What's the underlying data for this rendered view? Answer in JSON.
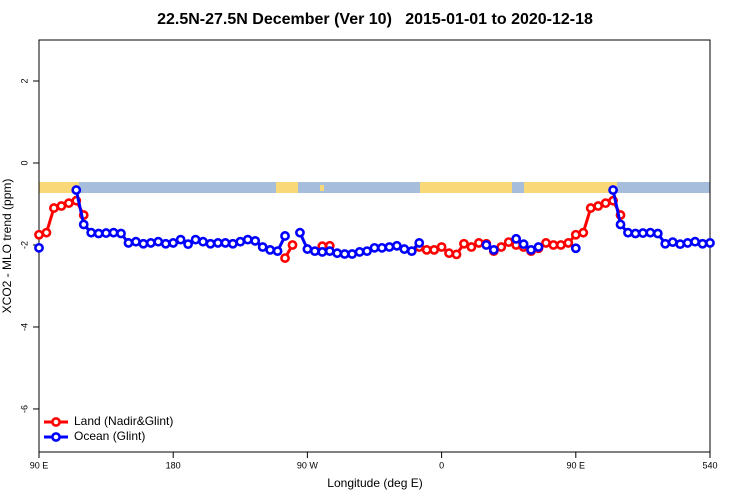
{
  "chart_data": {
    "type": "line",
    "title": "22.5N-27.5N December (Ver 10)   2015-01-01 to 2020-12-18",
    "x_label": "Longitude (deg E)",
    "y_label": "XCO2 - MLO trend (ppm)",
    "x": [
      90,
      95,
      100,
      105,
      110,
      115,
      120,
      125,
      130,
      135,
      140,
      145,
      150,
      155,
      160,
      165,
      170,
      175,
      180,
      185,
      190,
      195,
      200,
      205,
      210,
      215,
      220,
      225,
      230,
      235,
      240,
      245,
      250,
      255,
      260,
      265,
      270,
      275,
      280,
      285,
      290,
      295,
      300,
      305,
      310,
      315,
      320,
      325,
      330,
      335,
      340,
      345,
      350,
      355,
      360,
      365,
      370,
      375,
      380,
      385,
      390,
      395,
      400,
      405,
      410,
      415,
      420,
      425,
      430,
      435,
      440,
      445,
      450,
      455,
      460,
      465,
      470,
      475,
      480,
      485,
      490,
      495,
      500,
      505,
      510,
      515,
      520,
      525,
      530,
      535,
      540
    ],
    "series": [
      {
        "name": "Land (Nadir&Glint)",
        "color": "#ff0000",
        "values": [
          -1.75,
          -1.7,
          -1.1,
          -1.05,
          -0.98,
          -0.92,
          -1.27,
          null,
          null,
          null,
          null,
          null,
          null,
          null,
          null,
          null,
          null,
          null,
          null,
          null,
          null,
          null,
          null,
          null,
          null,
          null,
          null,
          null,
          null,
          null,
          null,
          null,
          null,
          -2.32,
          -2.0,
          null,
          null,
          null,
          -2.03,
          -2.02,
          null,
          null,
          null,
          null,
          null,
          null,
          null,
          null,
          null,
          null,
          null,
          -2.05,
          -2.12,
          -2.12,
          -2.05,
          -2.2,
          -2.23,
          -1.97,
          -2.05,
          -1.95,
          -1.97,
          -2.15,
          -2.05,
          -1.93,
          -2.0,
          -2.05,
          -2.15,
          -2.08,
          -1.95,
          -2.0,
          -2.0,
          -1.95,
          -1.75,
          -1.7,
          -1.1,
          -1.05,
          -0.98,
          -0.92,
          -1.27,
          null,
          null,
          null,
          null,
          null,
          null,
          null,
          null,
          null,
          null,
          null,
          null
        ]
      },
      {
        "name": "Ocean (Glint)",
        "color": "#0000ff",
        "values": [
          -2.07,
          null,
          null,
          null,
          null,
          -0.66,
          -1.5,
          -1.7,
          -1.72,
          -1.71,
          -1.7,
          -1.72,
          -1.95,
          -1.92,
          -1.97,
          -1.95,
          -1.92,
          -1.97,
          -1.95,
          -1.87,
          -1.98,
          -1.87,
          -1.92,
          -1.97,
          -1.95,
          -1.95,
          -1.97,
          -1.92,
          -1.87,
          -1.9,
          -2.05,
          -2.12,
          -2.15,
          -1.78,
          null,
          -1.7,
          -2.1,
          -2.15,
          -2.17,
          -2.15,
          -2.2,
          -2.22,
          -2.22,
          -2.17,
          -2.15,
          -2.07,
          -2.07,
          -2.05,
          -2.02,
          -2.1,
          -2.15,
          -1.95,
          null,
          null,
          null,
          null,
          null,
          null,
          null,
          null,
          -2.0,
          -2.12,
          null,
          null,
          -1.85,
          -1.98,
          -2.12,
          -2.05,
          null,
          null,
          null,
          null,
          -2.08,
          null,
          null,
          null,
          null,
          -0.66,
          -1.5,
          -1.7,
          -1.72,
          -1.71,
          -1.7,
          -1.72,
          -1.97,
          -1.93,
          -1.98,
          -1.95,
          -1.92,
          -1.97,
          -1.95
        ]
      }
    ],
    "xlim": [
      90,
      540
    ],
    "xticks": [
      {
        "value": 90,
        "label": "90 E"
      },
      180,
      {
        "value": 270,
        "label": "90 W"
      },
      {
        "value": 360,
        "label": "0"
      },
      {
        "value": 450,
        "label": "90 E"
      },
      540
    ],
    "ylim": [
      -7.05,
      3.0
    ],
    "yticks": [
      -6,
      -4,
      -2,
      0,
      2
    ],
    "legend": "bottom-left"
  }
}
